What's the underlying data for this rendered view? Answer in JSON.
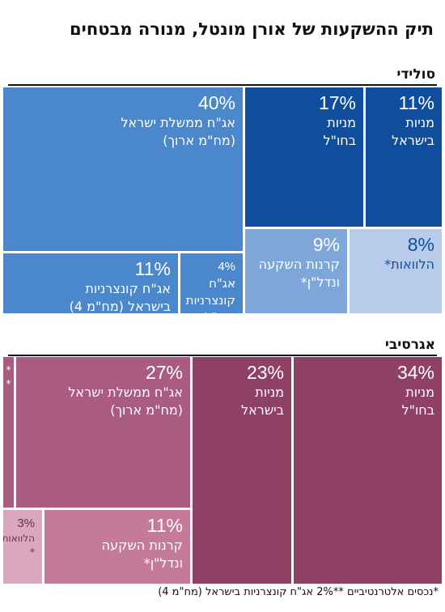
{
  "title": "תיק ההשקעות של אורן מונטל, מנורה מבטחים",
  "chart_data": [
    {
      "type": "treemap",
      "title": "סולידי",
      "unit": "%",
      "items": [
        {
          "label": "אג\"ח ממשלת ישראל (מח\"מ ארוך)",
          "lines": [
            "אג\"ח ממשלת ישראל",
            "(מח\"מ ארוך)"
          ],
          "value": 40,
          "color": "#4b87cb"
        },
        {
          "label": "מניות בחו\"ל",
          "lines": [
            "מניות",
            "בחו\"ל"
          ],
          "value": 17,
          "color": "#0e4e9c"
        },
        {
          "label": "מניות בישראל",
          "lines": [
            "מניות",
            "בישראל"
          ],
          "value": 11,
          "color": "#0e4e9c"
        },
        {
          "label": "אג\"ח קונצרניות בישראל (מח\"מ 4)",
          "lines": [
            "אג\"ח קונצרניות",
            "בישראל (מח\"מ 4)"
          ],
          "value": 11,
          "color": "#4b87cb"
        },
        {
          "label": "אג\"ח קונצרניות בחו\"ל",
          "lines": [
            "אג\"ח",
            "קונצרניות",
            "בחו\"ל"
          ],
          "value": 4,
          "color": "#4b87cb"
        },
        {
          "label": "קרנות השקעה ונדל\"ן*",
          "lines": [
            "קרנות השקעה",
            "ונדל\"ן*"
          ],
          "value": 9,
          "color": "#7fa6d9"
        },
        {
          "label": "הלוואות*",
          "lines": [
            "הלוואות*"
          ],
          "value": 8,
          "color": "#b8cbea"
        }
      ]
    },
    {
      "type": "treemap",
      "title": "אגרסיבי",
      "unit": "%",
      "items": [
        {
          "label": "מניות בחו\"ל",
          "lines": [
            "מניות",
            "בחו\"ל"
          ],
          "value": 34,
          "color": "#8e4164"
        },
        {
          "label": "מניות בישראל",
          "lines": [
            "מניות",
            "בישראל"
          ],
          "value": 23,
          "color": "#8e4164"
        },
        {
          "label": "אג\"ח ממשלת ישראל (מח\"מ ארוך)",
          "lines": [
            "אג\"ח ממשלת ישראל",
            "(מח\"מ ארוך)"
          ],
          "value": 27,
          "color": "#a95c80"
        },
        {
          "label": "קרנות השקעה ונדל\"ן*",
          "lines": [
            "קרנות השקעה",
            "ונדל\"ן*"
          ],
          "value": 11,
          "color": "#c57a98"
        },
        {
          "label": "הלוואות*",
          "lines": [
            "הלוואות",
            "*"
          ],
          "value": 3,
          "color": "#d9a8be"
        },
        {
          "label": "**",
          "lines": [
            "*",
            "*"
          ],
          "value": 2,
          "color": "#a95c80"
        }
      ]
    }
  ],
  "footnote": "*נכסים אלטרנטיביים   **2% אג\"ח קונצרניות בישראל (מח\"מ 4)"
}
